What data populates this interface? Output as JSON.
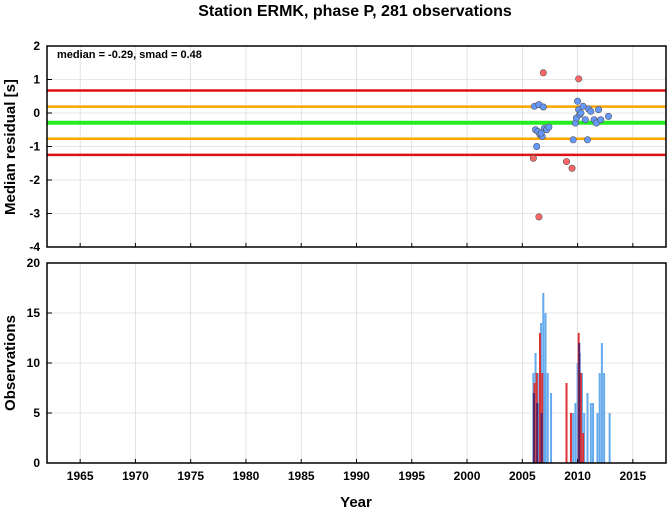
{
  "chart_data": [
    {
      "type": "scatter",
      "title": "Station ERMK, phase P, 281 observations",
      "xlabel": "",
      "ylabel": "Median residual [s]",
      "annotation": "median = -0.29, smad = 0.48",
      "xlim": [
        1962,
        2018
      ],
      "ylim": [
        -4,
        2
      ],
      "yticks": [
        -4,
        -3,
        -2,
        -1,
        0,
        1,
        2
      ],
      "grid": true,
      "lines": [
        {
          "name": "median",
          "y": -0.29,
          "color": "#22ee22"
        },
        {
          "name": "upper 1 smad",
          "y": 0.19,
          "color": "#ffa500"
        },
        {
          "name": "lower 1 smad",
          "y": -0.77,
          "color": "#ffa500"
        },
        {
          "name": "upper 2 smad",
          "y": 0.67,
          "color": "#dd1111"
        },
        {
          "name": "lower 2 smad",
          "y": -1.25,
          "color": "#dd1111"
        }
      ],
      "series": [
        {
          "color": "#6699ff",
          "points": [
            [
              2006.1,
              0.2
            ],
            [
              2006.5,
              0.25
            ],
            [
              2006.9,
              0.18
            ],
            [
              2006.2,
              -0.5
            ],
            [
              2006.4,
              -0.55
            ],
            [
              2006.6,
              -0.65
            ],
            [
              2006.8,
              -0.7
            ],
            [
              2007.0,
              -0.45
            ],
            [
              2007.2,
              -0.5
            ],
            [
              2007.4,
              -0.42
            ],
            [
              2006.3,
              -1.0
            ],
            [
              2006.7,
              -0.6
            ],
            [
              2009.6,
              -0.8
            ],
            [
              2009.8,
              -0.3
            ],
            [
              2009.9,
              -0.15
            ],
            [
              2010.0,
              0.35
            ],
            [
              2010.1,
              0.1
            ],
            [
              2010.2,
              -0.05
            ],
            [
              2010.3,
              0.0
            ],
            [
              2010.5,
              0.2
            ],
            [
              2010.7,
              -0.2
            ],
            [
              2010.9,
              -0.8
            ],
            [
              2011.0,
              0.12
            ],
            [
              2011.2,
              0.05
            ],
            [
              2011.5,
              -0.2
            ],
            [
              2011.7,
              -0.3
            ],
            [
              2011.9,
              0.1
            ],
            [
              2012.1,
              -0.2
            ],
            [
              2012.8,
              -0.1
            ]
          ]
        },
        {
          "color": "#ff6666",
          "points": [
            [
              2006.0,
              -1.35
            ],
            [
              2006.5,
              -3.1
            ],
            [
              2006.9,
              1.2
            ],
            [
              2009.0,
              -1.45
            ],
            [
              2009.5,
              -1.65
            ],
            [
              2010.1,
              1.02
            ]
          ]
        }
      ]
    },
    {
      "type": "bar",
      "title": "",
      "xlabel": "Year",
      "ylabel": "Observations",
      "xlim": [
        1962,
        2018
      ],
      "ylim": [
        0,
        20
      ],
      "yticks": [
        0,
        5,
        10,
        15,
        20
      ],
      "xticks": [
        1965,
        1970,
        1975,
        1980,
        1985,
        1990,
        1995,
        2000,
        2005,
        2010,
        2015
      ],
      "grid": true,
      "series": [
        {
          "color": "#66aaee",
          "x": [
            2006.0,
            2006.2,
            2006.4,
            2006.5,
            2006.7,
            2006.9,
            2007.0,
            2007.1,
            2007.3,
            2007.6,
            2009.6,
            2009.8,
            2010.0,
            2010.2,
            2010.4,
            2010.6,
            2010.9,
            2011.2,
            2011.4,
            2011.8,
            2012.0,
            2012.2,
            2012.4,
            2012.9
          ],
          "values": [
            9,
            11,
            9,
            6,
            14,
            17,
            9,
            15,
            9,
            7,
            5,
            6,
            10,
            11,
            9,
            5,
            7,
            6,
            6,
            5,
            9,
            12,
            9,
            5
          ]
        },
        {
          "color": "#dd3333",
          "x": [
            2006.1,
            2006.3,
            2006.6,
            2006.8,
            2009.0,
            2009.4,
            2010.1,
            2010.3,
            2010.5
          ],
          "values": [
            8,
            9,
            13,
            9,
            8,
            5,
            13,
            9,
            3
          ]
        },
        {
          "color": "#552266",
          "x": [
            2006.05,
            2006.35,
            2006.75,
            2010.15
          ],
          "values": [
            7,
            6,
            5,
            12
          ]
        }
      ]
    }
  ]
}
